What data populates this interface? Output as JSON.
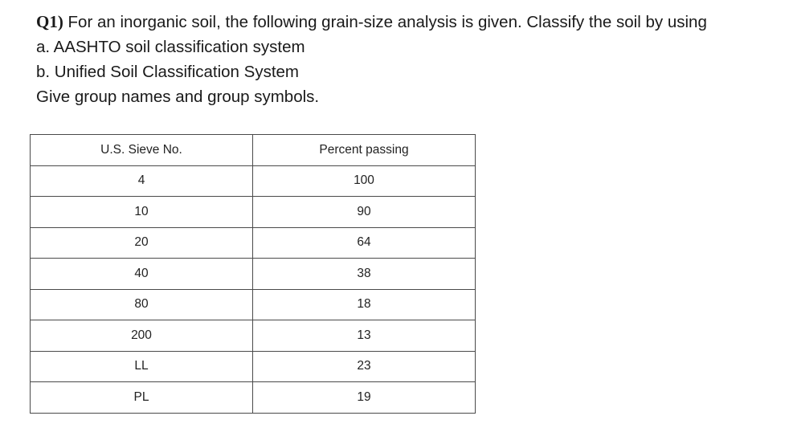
{
  "question": {
    "number": "Q1)",
    "text": " For an inorganic soil, the following grain-size analysis is given. Classify the soil by using",
    "item_a": "a. AASHTO soil classification system",
    "item_b": "b. Unified Soil Classification System",
    "instruction": "Give group names and group symbols."
  },
  "table": {
    "headers": [
      "U.S. Sieve No.",
      "Percent passing"
    ],
    "rows": [
      [
        "4",
        "100"
      ],
      [
        "10",
        "90"
      ],
      [
        "20",
        "64"
      ],
      [
        "40",
        "38"
      ],
      [
        "80",
        "18"
      ],
      [
        "200",
        "13"
      ],
      [
        "LL",
        "23"
      ],
      [
        "PL",
        "19"
      ]
    ]
  }
}
